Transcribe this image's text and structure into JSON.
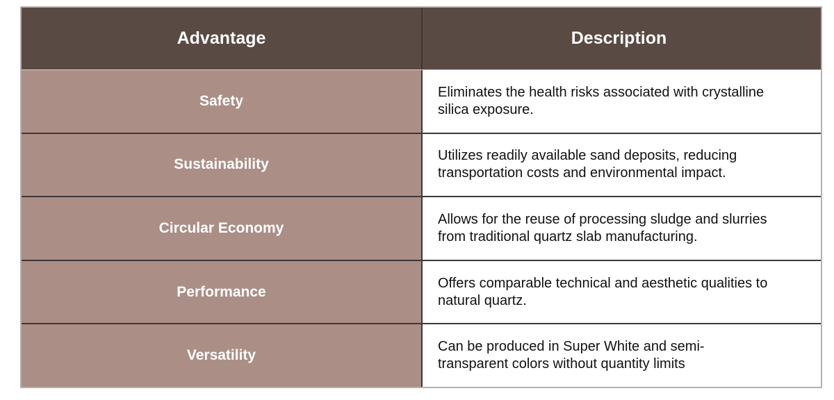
{
  "table": {
    "columns": [
      {
        "label": "Advantage"
      },
      {
        "label": "Description"
      }
    ],
    "rows": [
      {
        "advantage": "Safety",
        "description": "Eliminates the health risks associated with crystalline\nsilica exposure."
      },
      {
        "advantage": "Sustainability",
        "description": "Utilizes readily available sand deposits, reducing\ntransportation costs and environmental impact."
      },
      {
        "advantage": "Circular Economy",
        "description": "Allows for the reuse of processing sludge and slurries\nfrom traditional quartz slab manufacturing."
      },
      {
        "advantage": "Performance",
        "description": "Offers comparable technical and aesthetic qualities to\nnatural quartz."
      },
      {
        "advantage": "Versatility",
        "description": "Can be produced in Super White and semi-\ntransparent colors without quantity limits"
      }
    ],
    "colors": {
      "header_bg": "#594a43",
      "row_bg": "#ab8e86",
      "header_text": "#ffffff",
      "description_text": "#111111",
      "inner_border": "#3e3739",
      "outer_border": "#b5b0ae"
    }
  }
}
